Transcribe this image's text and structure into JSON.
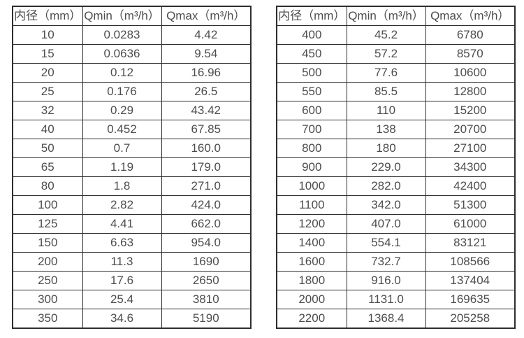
{
  "colors": {
    "background": "#ffffff",
    "border": "#2e2e2e",
    "text": "#4d4d4d"
  },
  "chart_data": [
    {
      "type": "table",
      "title": "",
      "columns": [
        "内径（mm）",
        "Qmin（m³/h）",
        "Qmax（m³/h）"
      ],
      "rows": [
        [
          "10",
          "0.0283",
          "4.42"
        ],
        [
          "15",
          "0.0636",
          "9.54"
        ],
        [
          "20",
          "0.12",
          "16.96"
        ],
        [
          "25",
          "0.176",
          "26.5"
        ],
        [
          "32",
          "0.29",
          "43.42"
        ],
        [
          "40",
          "0.452",
          "67.85"
        ],
        [
          "50",
          "0.7",
          "160.0"
        ],
        [
          "65",
          "1.19",
          "179.0"
        ],
        [
          "80",
          "1.8",
          "271.0"
        ],
        [
          "100",
          "2.82",
          "424.0"
        ],
        [
          "125",
          "4.41",
          "662.0"
        ],
        [
          "150",
          "6.63",
          "954.0"
        ],
        [
          "200",
          "11.3",
          "1690"
        ],
        [
          "250",
          "17.6",
          "2650"
        ],
        [
          "300",
          "25.4",
          "3810"
        ],
        [
          "350",
          "34.6",
          "5190"
        ]
      ]
    },
    {
      "type": "table",
      "title": "",
      "columns": [
        "内径（mm）",
        "Qmin（m³/h）",
        "Qmax（m³/h）"
      ],
      "rows": [
        [
          "400",
          "45.2",
          "6780"
        ],
        [
          "450",
          "57.2",
          "8570"
        ],
        [
          "500",
          "77.6",
          "10600"
        ],
        [
          "550",
          "85.5",
          "12800"
        ],
        [
          "600",
          "110",
          "15200"
        ],
        [
          "700",
          "138",
          "20700"
        ],
        [
          "800",
          "180",
          "27100"
        ],
        [
          "900",
          "229.0",
          "34300"
        ],
        [
          "1000",
          "282.0",
          "42400"
        ],
        [
          "1100",
          "342.0",
          "51300"
        ],
        [
          "1200",
          "407.0",
          "61000"
        ],
        [
          "1400",
          "554.1",
          "83121"
        ],
        [
          "1600",
          "732.7",
          "108566"
        ],
        [
          "1800",
          "916.0",
          "137404"
        ],
        [
          "2000",
          "1131.0",
          "169635"
        ],
        [
          "2200",
          "1368.4",
          "205258"
        ]
      ]
    }
  ]
}
